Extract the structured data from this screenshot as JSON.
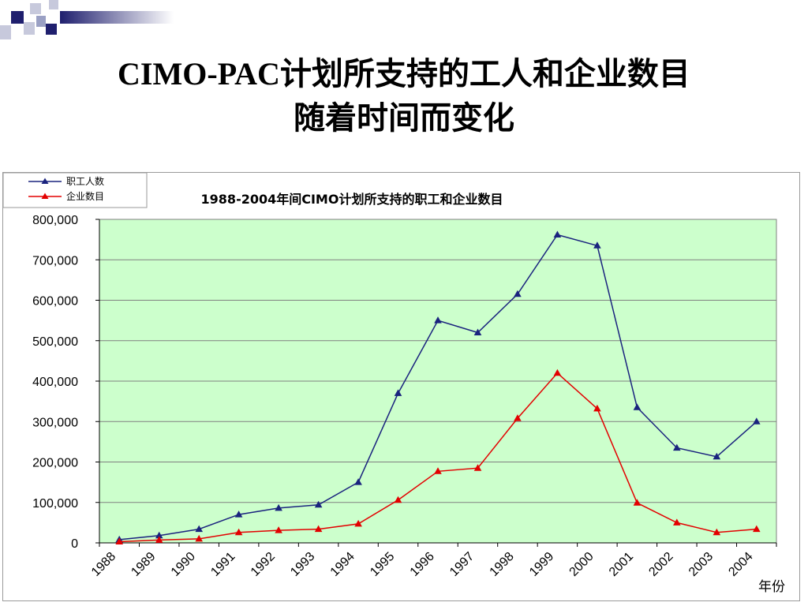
{
  "slide": {
    "title_line1": "CIMO-PAC计划所支持的工人和企业数目",
    "title_line2": "随着时间而变化"
  },
  "colors": {
    "workers": "#1a237e",
    "companies": "#e30000",
    "plot_bg": "#ccffcc",
    "deco_navy": "#1f1f6e"
  },
  "chart_data": {
    "type": "line",
    "title": "1988-2004年间CIMO计划所支持的职工和企业数目",
    "xlabel": "年份",
    "ylabel": "",
    "categories": [
      "1988",
      "1989",
      "1990",
      "1991",
      "1992",
      "1993",
      "1994",
      "1995",
      "1996",
      "1997",
      "1998",
      "1999",
      "2000",
      "2001",
      "2002",
      "2003",
      "2004"
    ],
    "ylim": [
      0,
      800000
    ],
    "yticks": [
      0,
      100000,
      200000,
      300000,
      400000,
      500000,
      600000,
      700000,
      800000
    ],
    "ytick_labels": [
      "0",
      "100,000",
      "200,000",
      "300,000",
      "400,000",
      "500,000",
      "600,000",
      "700,000",
      "800,000"
    ],
    "grid": true,
    "legend_position": "top-left",
    "series": [
      {
        "name": "职工人数",
        "marker": "triangle",
        "values": [
          8000,
          18000,
          34000,
          70000,
          86000,
          94000,
          150000,
          370000,
          550000,
          520000,
          615000,
          762000,
          735000,
          335000,
          235000,
          213000,
          300000
        ]
      },
      {
        "name": "企业数目",
        "marker": "triangle",
        "values": [
          3000,
          7000,
          10000,
          26000,
          31000,
          34000,
          47000,
          106000,
          177000,
          185000,
          308000,
          420000,
          332000,
          99000,
          50000,
          26000,
          34000
        ]
      }
    ]
  }
}
